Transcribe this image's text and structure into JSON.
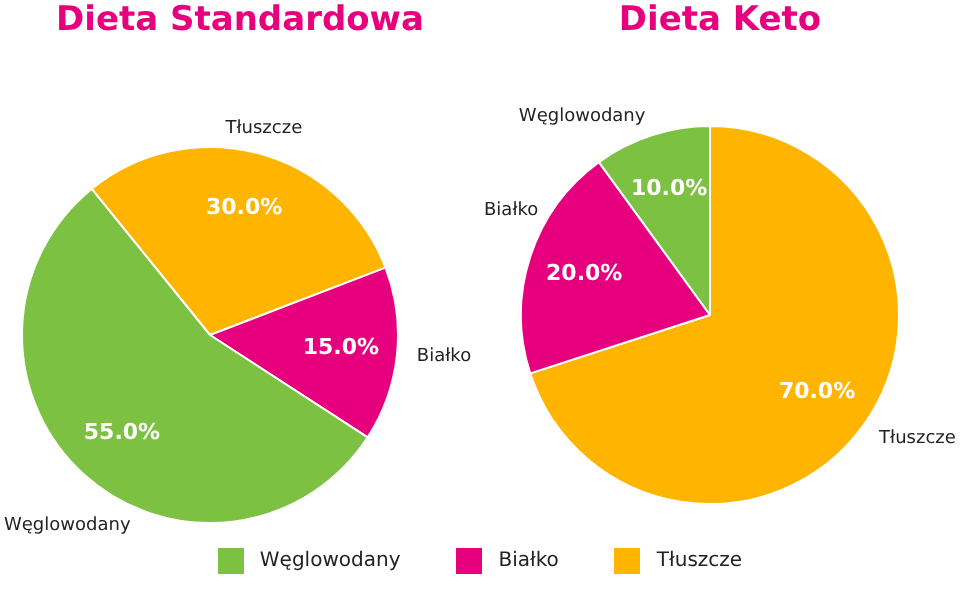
{
  "chart_data": [
    {
      "type": "pie",
      "title": "Dieta Standardowa",
      "categories": [
        "Węglowodany",
        "Białko",
        "Tłuszcze"
      ],
      "values": [
        55,
        15,
        30
      ],
      "colors": [
        "#7dc142",
        "#e6007e",
        "#ffb400"
      ],
      "value_labels": [
        "55.0%",
        "15.0%",
        "30.0%"
      ],
      "legend": "bottom"
    },
    {
      "type": "pie",
      "title": "Dieta Keto",
      "categories": [
        "Węglowodany",
        "Białko",
        "Tłuszcze"
      ],
      "values": [
        10,
        20,
        70
      ],
      "colors": [
        "#7dc142",
        "#e6007e",
        "#ffb400"
      ],
      "value_labels": [
        "10.0%",
        "20.0%",
        "70.0%"
      ]
    }
  ]
}
